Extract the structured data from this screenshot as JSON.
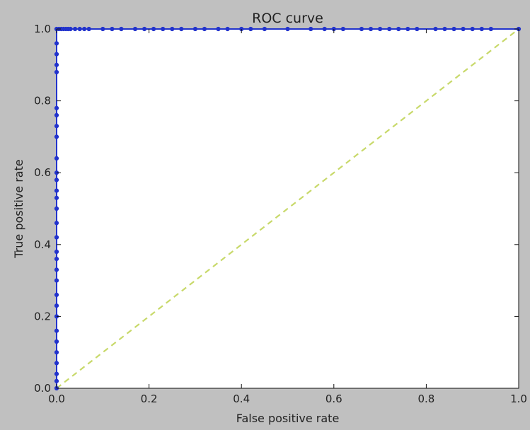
{
  "chart_data": {
    "type": "line",
    "title": "ROC curve",
    "xlabel": "False positive rate",
    "ylabel": "True positive rate",
    "xlim": [
      0.0,
      1.0
    ],
    "ylim": [
      0.0,
      1.0
    ],
    "x_ticks": [
      "0.0",
      "0.2",
      "0.4",
      "0.6",
      "0.8",
      "1.0"
    ],
    "y_ticks": [
      "0.0",
      "0.2",
      "0.4",
      "0.6",
      "0.8",
      "1.0"
    ],
    "grid": false,
    "legend": false,
    "series": [
      {
        "style": "line-with-markers",
        "color": "#2233cc",
        "x": [
          0.0,
          0.0,
          0.0,
          0.0,
          0.0,
          0.0,
          0.0,
          0.0,
          0.0,
          0.0,
          0.0,
          0.0,
          0.0,
          0.0,
          0.0,
          0.0,
          0.0,
          0.0,
          0.0,
          0.0,
          0.0,
          0.0,
          0.0,
          0.0,
          0.0,
          0.0,
          0.0,
          0.0,
          0.0,
          0.0,
          0.0,
          0.005,
          0.01,
          0.015,
          0.02,
          0.025,
          0.03,
          0.04,
          0.05,
          0.06,
          0.07,
          0.1,
          0.12,
          0.14,
          0.17,
          0.19,
          0.21,
          0.23,
          0.25,
          0.27,
          0.3,
          0.32,
          0.35,
          0.37,
          0.4,
          0.42,
          0.45,
          0.5,
          0.55,
          0.58,
          0.6,
          0.62,
          0.66,
          0.68,
          0.7,
          0.72,
          0.74,
          0.76,
          0.78,
          0.82,
          0.84,
          0.86,
          0.88,
          0.9,
          0.92,
          0.94,
          1.0
        ],
        "y": [
          0.0,
          0.02,
          0.04,
          0.07,
          0.1,
          0.13,
          0.16,
          0.2,
          0.23,
          0.26,
          0.3,
          0.33,
          0.36,
          0.38,
          0.42,
          0.46,
          0.5,
          0.53,
          0.55,
          0.58,
          0.6,
          0.64,
          0.7,
          0.73,
          0.76,
          0.78,
          0.88,
          0.9,
          0.93,
          0.96,
          1.0,
          1.0,
          1.0,
          1.0,
          1.0,
          1.0,
          1.0,
          1.0,
          1.0,
          1.0,
          1.0,
          1.0,
          1.0,
          1.0,
          1.0,
          1.0,
          1.0,
          1.0,
          1.0,
          1.0,
          1.0,
          1.0,
          1.0,
          1.0,
          1.0,
          1.0,
          1.0,
          1.0,
          1.0,
          1.0,
          1.0,
          1.0,
          1.0,
          1.0,
          1.0,
          1.0,
          1.0,
          1.0,
          1.0,
          1.0,
          1.0,
          1.0,
          1.0,
          1.0,
          1.0,
          1.0,
          1.0
        ]
      },
      {
        "style": "dashed",
        "color": "#c8d96a",
        "x": [
          0.0,
          1.0
        ],
        "y": [
          0.0,
          1.0
        ]
      }
    ]
  }
}
